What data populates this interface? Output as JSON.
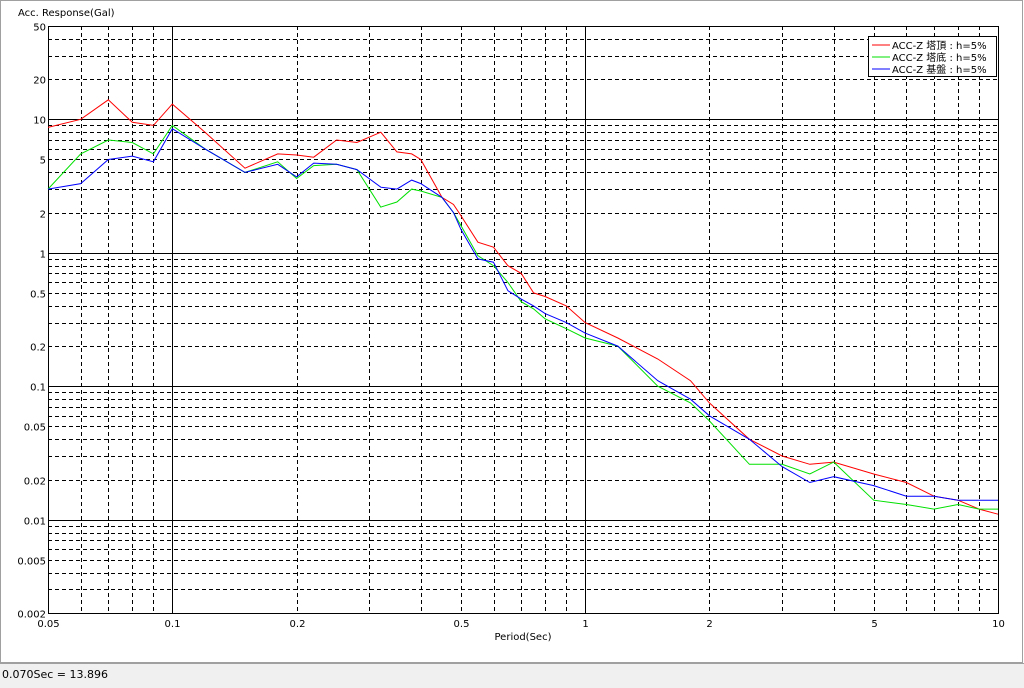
{
  "chart_data": {
    "type": "line",
    "ylabel": "Acc. Response(Gal)",
    "xlabel": "Period(Sec)",
    "xscale": "log",
    "yscale": "log",
    "grid": true,
    "legend": "top-right",
    "xlim": [
      0.05,
      10
    ],
    "ylim": [
      0.002,
      50
    ],
    "xticks": [
      0.05,
      0.1,
      0.2,
      0.5,
      1,
      2,
      5,
      10
    ],
    "yticks": [
      0.002,
      0.005,
      0.01,
      0.02,
      0.05,
      0.1,
      0.2,
      0.5,
      1,
      2,
      5,
      10,
      20,
      50
    ],
    "xminorticks": [
      0.06,
      0.07,
      0.08,
      0.09,
      0.3,
      0.4,
      0.6,
      0.7,
      0.8,
      0.9,
      3,
      4,
      6,
      7,
      8,
      9
    ],
    "yminorticks": [
      0.003,
      0.004,
      0.006,
      0.007,
      0.008,
      0.009,
      0.03,
      0.04,
      0.06,
      0.07,
      0.08,
      0.09,
      0.3,
      0.4,
      0.6,
      0.7,
      0.8,
      0.9,
      3,
      4,
      6,
      7,
      8,
      9,
      30,
      40
    ],
    "x": [
      0.05,
      0.06,
      0.07,
      0.08,
      0.09,
      0.1,
      0.12,
      0.15,
      0.18,
      0.2,
      0.22,
      0.25,
      0.28,
      0.32,
      0.35,
      0.38,
      0.4,
      0.45,
      0.48,
      0.5,
      0.55,
      0.6,
      0.65,
      0.7,
      0.75,
      0.8,
      0.9,
      1,
      1.2,
      1.5,
      1.8,
      2,
      2.5,
      3,
      3.5,
      4,
      5,
      6,
      7,
      8,
      9,
      10
    ],
    "series": [
      {
        "name": "ACC-Z 塔頂 : h=5%",
        "color": "#ff0000",
        "values": [
          8.7,
          10,
          14,
          9.5,
          9,
          13,
          8,
          4.3,
          5.5,
          5.4,
          5.2,
          7,
          6.7,
          8,
          5.7,
          5.5,
          5,
          2.6,
          2.3,
          1.9,
          1.2,
          1.1,
          0.8,
          0.7,
          0.5,
          0.47,
          0.4,
          0.3,
          0.23,
          0.16,
          0.11,
          0.075,
          0.04,
          0.03,
          0.026,
          0.027,
          0.022,
          0.019,
          0.015,
          0.014,
          0.012,
          0.011
        ]
      },
      {
        "name": "ACC-Z 塔底 : h=5%",
        "color": "#00e000",
        "values": [
          3,
          5.5,
          7,
          6.7,
          5.5,
          9,
          6,
          4,
          4.8,
          3.6,
          4.5,
          4.6,
          4.2,
          2.2,
          2.4,
          3,
          2.9,
          2.6,
          2,
          1.6,
          0.95,
          0.8,
          0.6,
          0.43,
          0.38,
          0.32,
          0.27,
          0.23,
          0.2,
          0.1,
          0.075,
          0.055,
          0.026,
          0.026,
          0.022,
          0.027,
          0.014,
          0.013,
          0.012,
          0.013,
          0.012,
          0.012
        ]
      },
      {
        "name": "ACC-Z 基盤 : h=5%",
        "color": "#0000ff",
        "values": [
          3,
          3.3,
          5,
          5.3,
          4.8,
          8.5,
          6,
          4,
          4.6,
          3.7,
          4.7,
          4.6,
          4.2,
          3.1,
          3,
          3.5,
          3.3,
          2.6,
          2,
          1.5,
          0.9,
          0.85,
          0.52,
          0.45,
          0.4,
          0.35,
          0.3,
          0.25,
          0.2,
          0.11,
          0.08,
          0.06,
          0.04,
          0.025,
          0.019,
          0.021,
          0.018,
          0.015,
          0.015,
          0.014,
          0.014,
          0.014
        ]
      }
    ],
    "status_text": "0.070Sec = 13.896"
  }
}
